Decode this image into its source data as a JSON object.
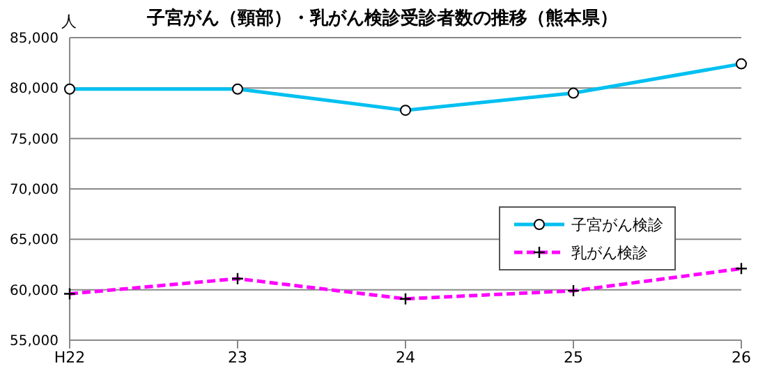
{
  "chart_data": {
    "type": "line",
    "title": "子宮がん（頸部）・乳がん検診受診者数の推移（熊本県）",
    "ylabel": "人",
    "categories": [
      "H22",
      "23",
      "24",
      "25",
      "26"
    ],
    "series": [
      {
        "name": "子宮がん検診",
        "color": "#00c0f0",
        "values": [
          79900,
          79900,
          77800,
          79500,
          82400
        ],
        "marker": "circle",
        "line_style": "solid"
      },
      {
        "name": "乳がん検診",
        "color": "#ff00ff",
        "values": [
          59600,
          61100,
          59100,
          59900,
          62100
        ],
        "marker": "cross",
        "line_style": "dashed"
      }
    ],
    "ylim": [
      55000,
      85000
    ],
    "yticks": [
      {
        "value": 55000,
        "label": "55,000"
      },
      {
        "value": 60000,
        "label": "60,000"
      },
      {
        "value": 65000,
        "label": "65,000"
      },
      {
        "value": 70000,
        "label": "70,000"
      },
      {
        "value": 75000,
        "label": "75,000"
      },
      {
        "value": 80000,
        "label": "80,000"
      },
      {
        "value": 85000,
        "label": "85,000"
      }
    ],
    "grid": "y",
    "legend": "right"
  }
}
